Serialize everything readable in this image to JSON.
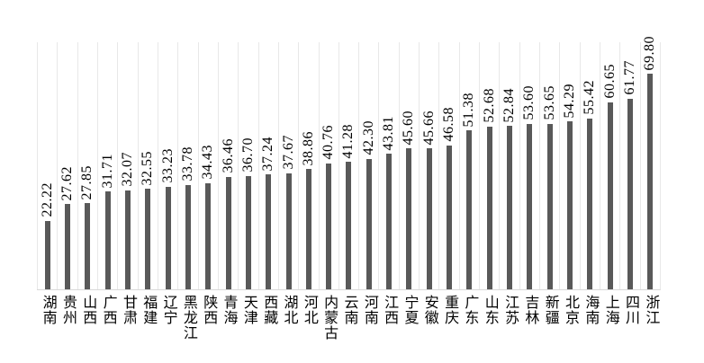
{
  "chart_data": {
    "type": "bar",
    "title": "",
    "xlabel": "",
    "ylabel": "",
    "categories": [
      "湖南",
      "贵州",
      "山西",
      "广西",
      "甘肃",
      "福建",
      "辽宁",
      "黑龙江",
      "陕西",
      "青海",
      "天津",
      "西藏",
      "湖北",
      "河北",
      "内蒙古",
      "云南",
      "河南",
      "江西",
      "宁夏",
      "安徽",
      "重庆",
      "广东",
      "山东",
      "江苏",
      "吉林",
      "新疆",
      "北京",
      "海南",
      "上海",
      "四川",
      "浙江"
    ],
    "values": [
      22.22,
      27.62,
      27.85,
      31.71,
      32.07,
      32.55,
      33.23,
      33.78,
      34.43,
      36.46,
      36.7,
      37.24,
      37.67,
      38.86,
      40.76,
      41.28,
      42.3,
      43.81,
      45.6,
      45.66,
      46.58,
      51.38,
      52.68,
      52.84,
      53.6,
      53.65,
      54.29,
      55.42,
      60.65,
      61.77,
      69.8
    ],
    "value_label_decimals": 2,
    "value_label_rotation_deg": 90,
    "category_label_orientation": "vertical-upright",
    "ylim": [
      0,
      80
    ],
    "y_axis_visible": false,
    "grid": "vertical-category-boundary-lines-only",
    "legend_position": "none",
    "colors": {
      "bar": "#595959",
      "gridline": "#e8e8e8",
      "baseline": "#d9d9d9",
      "text": "#000000",
      "background": "#ffffff"
    }
  }
}
